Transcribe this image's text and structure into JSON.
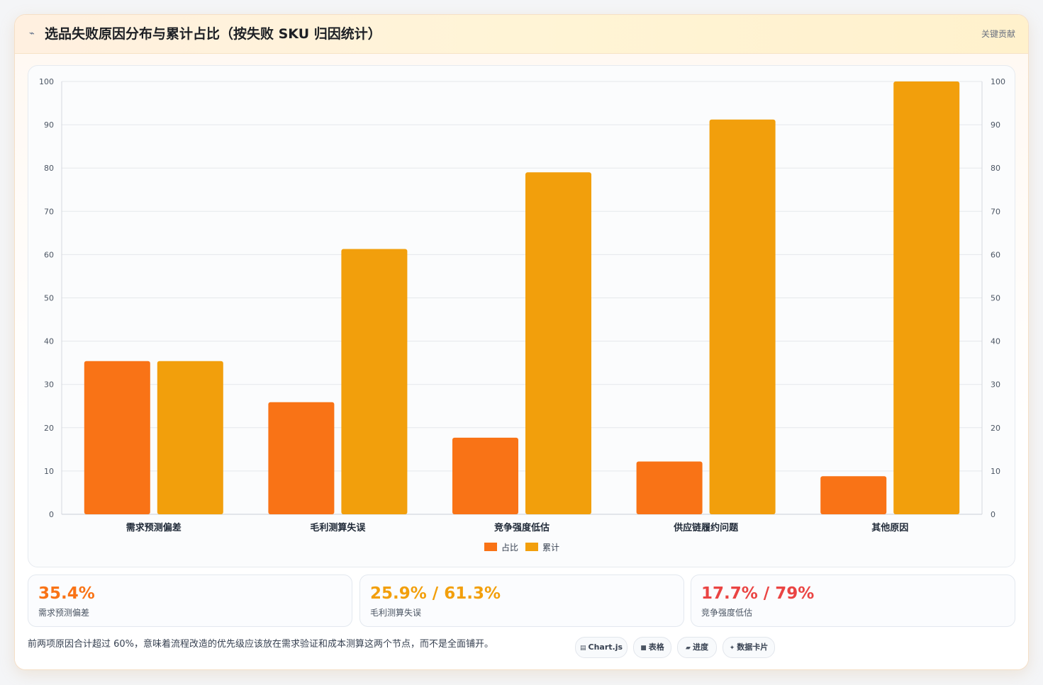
{
  "header": {
    "title": "选品失败原因分布与累计占比（按失败 SKU 归因统计）",
    "badge": "关键贡献",
    "icon": "spark-icon"
  },
  "chart_data": {
    "type": "bar",
    "title": "",
    "xlabel": "",
    "ylabel": "",
    "categories": [
      "需求预测偏差",
      "毛利测算失误",
      "竞争强度低估",
      "供应链履约问题",
      "其他原因"
    ],
    "series": [
      {
        "name": "占比",
        "values": [
          35.4,
          25.9,
          17.7,
          12.2,
          8.8
        ],
        "color": "#f97316"
      },
      {
        "name": "累计",
        "values": [
          35.4,
          61.3,
          79,
          91.2,
          100
        ],
        "color": "#f29f0c"
      }
    ],
    "ylim": [
      0,
      100
    ],
    "y2lim": [
      0,
      100
    ],
    "yticks": [
      "0",
      "10",
      "20",
      "30",
      "40",
      "50",
      "60",
      "70",
      "80",
      "90",
      "100"
    ],
    "grid": true,
    "legend_position": "bottom"
  },
  "stats": [
    {
      "value": "35.4%",
      "label": "需求预测偏差",
      "color": "#f97316"
    },
    {
      "value": "25.9% / 61.3%",
      "label": "毛利测算失误",
      "color": "#f29f0c"
    },
    {
      "value": "17.7% / 79%",
      "label": "竞争强度低估",
      "color": "#ea4443"
    }
  ],
  "footer": {
    "note": "前两项原因合计超过 60%，意味着流程改造的优先级应该放在需求验证和成本测算这两个节点，而不是全面铺开。",
    "pills": [
      {
        "icon": "chart-icon",
        "glyph": "▤",
        "label": "Chart.js"
      },
      {
        "icon": "table-icon",
        "glyph": "■",
        "label": "表格"
      },
      {
        "icon": "progress-icon",
        "glyph": "▰",
        "label": "进度"
      },
      {
        "icon": "data-card-icon",
        "glyph": "✦",
        "label": "数据卡片"
      }
    ]
  }
}
